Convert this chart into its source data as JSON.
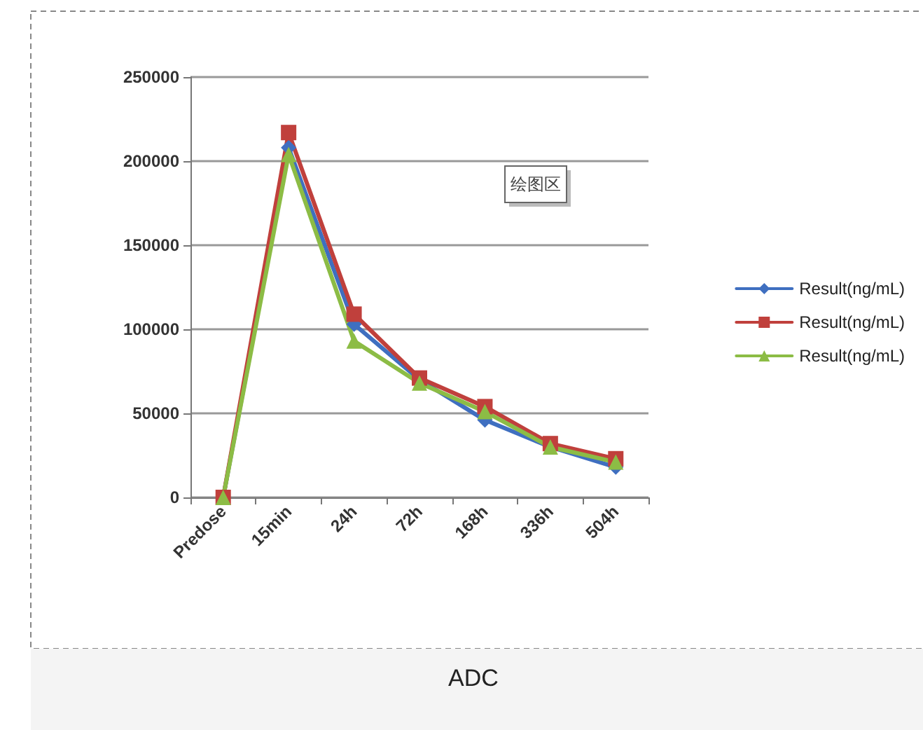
{
  "chart_data": {
    "type": "line",
    "categories": [
      "Predose",
      "15min",
      "24h",
      "72h",
      "168h",
      "336h",
      "504h"
    ],
    "series": [
      {
        "name": "Result(ng/mL)",
        "color": "#3f6fc0",
        "marker": "diamond",
        "values": [
          0,
          208000,
          103000,
          70000,
          46000,
          30000,
          18000
        ]
      },
      {
        "name": "Result(ng/mL)",
        "color": "#c0403c",
        "marker": "square",
        "values": [
          0,
          217000,
          109000,
          71000,
          54000,
          32000,
          23000
        ]
      },
      {
        "name": "Result(ng/mL)",
        "color": "#8cbc45",
        "marker": "triangle",
        "values": [
          0,
          204000,
          93000,
          68000,
          51000,
          30000,
          21000
        ]
      }
    ],
    "ylim": [
      0,
      250000
    ],
    "yticks": [
      0,
      50000,
      100000,
      150000,
      200000,
      250000
    ],
    "grid": "y",
    "legend": "right",
    "line_style": "solid",
    "title": "ADC",
    "annotations": [
      "绘图区"
    ]
  }
}
